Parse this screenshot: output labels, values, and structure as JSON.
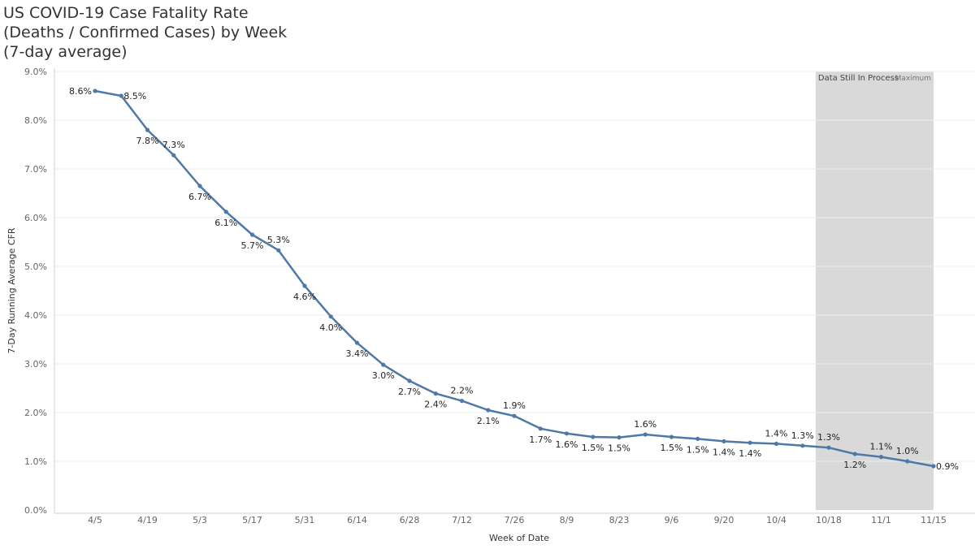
{
  "title_lines": [
    "US COVID-19 Case Fatality Rate",
    "(Deaths / Confirmed Cases) by Week",
    "(7-day average)"
  ],
  "chart_data": {
    "type": "line",
    "xlabel": "Week of Date",
    "ylabel": "7-Day Running Average CFR",
    "ylim": [
      0,
      9
    ],
    "yticks": [
      "0.0%",
      "1.0%",
      "2.0%",
      "3.0%",
      "4.0%",
      "5.0%",
      "6.0%",
      "7.0%",
      "8.0%",
      "9.0%"
    ],
    "xtick_labels": [
      "4/5",
      "4/19",
      "5/3",
      "5/17",
      "5/31",
      "6/14",
      "6/28",
      "7/12",
      "7/26",
      "8/9",
      "8/23",
      "9/6",
      "9/20",
      "10/4",
      "10/18",
      "11/1",
      "11/15"
    ],
    "grid": true,
    "line_color": "#4e79a7",
    "shade_color": "#d9d9d9",
    "shaded_region": {
      "x_start": "10/18",
      "x_end": "11/15",
      "label": "Data Still In Process",
      "overlap_label": "Maximum"
    },
    "series": [
      {
        "values": [
          8.6,
          8.5,
          7.8,
          7.3,
          6.7,
          6.1,
          5.7,
          5.3,
          4.6,
          4.0,
          3.4,
          3.0,
          2.7,
          2.4,
          2.2,
          2.1,
          1.9,
          1.7,
          1.6,
          1.5,
          1.5,
          1.6,
          1.5,
          1.5,
          1.4,
          1.4,
          1.4,
          1.3,
          1.3,
          1.2,
          1.1,
          1.0,
          0.9
        ],
        "labels": [
          "8.6%",
          "8.5%",
          "7.8%",
          "7.3%",
          "6.7%",
          "6.1%",
          "5.7%",
          "5.3%",
          "4.6%",
          "4.0%",
          "3.4%",
          "3.0%",
          "2.7%",
          "2.4%",
          "2.2%",
          "2.1%",
          "1.9%",
          "1.7%",
          "1.6%",
          "1.5%",
          "1.5%",
          "1.6%",
          "1.5%",
          "1.5%",
          "1.4%",
          "1.4%",
          "1.4%",
          "1.3%",
          "1.3%",
          "1.2%",
          "1.1%",
          "1.0%",
          "0.9%"
        ],
        "line_points": [
          8.6,
          8.5,
          7.8,
          7.28,
          6.65,
          6.12,
          5.65,
          5.33,
          4.6,
          3.97,
          3.43,
          2.98,
          2.65,
          2.39,
          2.24,
          2.05,
          1.93,
          1.67,
          1.57,
          1.5,
          1.49,
          1.55,
          1.5,
          1.46,
          1.41,
          1.38,
          1.36,
          1.32,
          1.28,
          1.15,
          1.09,
          1.0,
          0.9
        ]
      }
    ]
  }
}
